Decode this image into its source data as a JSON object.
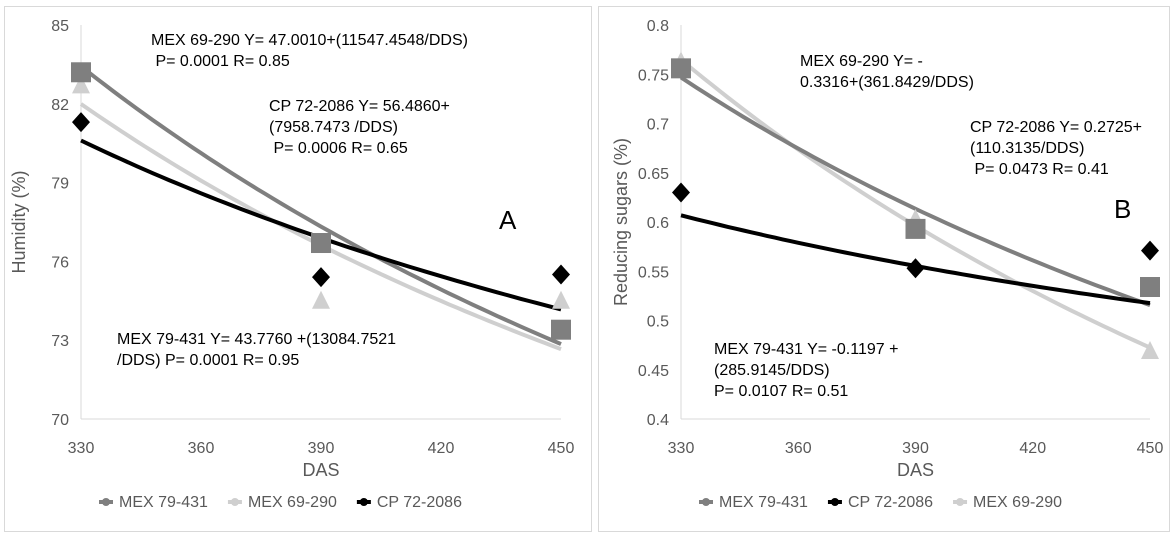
{
  "chart_data": [
    {
      "type": "scatter",
      "panel_letter": "A",
      "xlabel": "DAS",
      "ylabel": "Humidity (%)",
      "xlim": [
        330,
        450
      ],
      "ylim": [
        70,
        85
      ],
      "xticks": [
        "330",
        "360",
        "390",
        "420",
        "450"
      ],
      "yticks": [
        "70",
        "73",
        "76",
        "79",
        "82",
        "85"
      ],
      "grid": false,
      "legend_position": "bottom",
      "series": [
        {
          "name": "MEX 79-431",
          "color": "#7f7f7f",
          "marker": "square",
          "x": [
            330,
            390,
            450
          ],
          "y": [
            83.2,
            76.7,
            73.4
          ],
          "fit": {
            "a": 43.776,
            "b": 13084.7521
          }
        },
        {
          "name": "MEX 69-290",
          "color": "#cfcfcf",
          "marker": "triangle",
          "x": [
            330,
            390,
            450
          ],
          "y": [
            82.7,
            74.5,
            74.5
          ],
          "fit": {
            "a": 47.001,
            "b": 11547.4548
          }
        },
        {
          "name": "CP 72-2086",
          "color": "#000000",
          "marker": "diamond",
          "x": [
            330,
            390,
            450
          ],
          "y": [
            81.3,
            75.4,
            75.5
          ],
          "fit": {
            "a": 56.486,
            "b": 7958.7473
          }
        }
      ],
      "annotations": [
        {
          "lines": [
            "MEX 69-290 Y= 47.0010+(11547.4548/DDS)",
            " P= 0.0001 R= 0.85"
          ]
        },
        {
          "lines": [
            "CP 72-2086 Y= 56.4860+",
            "(7958.7473 /DDS)",
            " P= 0.0006 R= 0.65"
          ]
        },
        {
          "lines": [
            "MEX 79-431 Y= 43.7760 +(13084.7521",
            "/DDS) P= 0.0001 R= 0.95"
          ]
        }
      ]
    },
    {
      "type": "scatter",
      "panel_letter": "B",
      "xlabel": "DAS",
      "ylabel": "Reducing sugars (%)",
      "xlim": [
        330,
        450
      ],
      "ylim": [
        0.4,
        0.8
      ],
      "xticks": [
        "330",
        "360",
        "390",
        "420",
        "450"
      ],
      "yticks": [
        "0.4",
        "0.45",
        "0.5",
        "0.55",
        "0.6",
        "0.65",
        "0.7",
        "0.75",
        "0.8"
      ],
      "grid": false,
      "legend_position": "bottom",
      "series": [
        {
          "name": "MEX 79-431",
          "color": "#7f7f7f",
          "marker": "square",
          "x": [
            330,
            390,
            450
          ],
          "y": [
            0.756,
            0.593,
            0.534
          ],
          "fit": {
            "a": -0.1197,
            "b": 285.9145
          }
        },
        {
          "name": "CP 72-2086",
          "color": "#000000",
          "marker": "diamond",
          "x": [
            330,
            390,
            450
          ],
          "y": [
            0.63,
            0.553,
            0.571
          ],
          "fit": {
            "a": 0.2725,
            "b": 110.3135
          }
        },
        {
          "name": "MEX 69-290",
          "color": "#cfcfcf",
          "marker": "triangle",
          "x": [
            330,
            390,
            450
          ],
          "y": [
            0.763,
            0.603,
            0.469
          ],
          "fit": {
            "a": -0.3316,
            "b": 361.8429
          }
        }
      ],
      "annotations": [
        {
          "lines": [
            "MEX 69-290 Y= -",
            "0.3316+(361.8429/DDS)"
          ]
        },
        {
          "lines": [
            "CP 72-2086 Y= 0.2725+",
            "(110.3135/DDS)",
            " P= 0.0473 R= 0.41"
          ]
        },
        {
          "lines": [
            "MEX 79-431 Y= -0.1197 +",
            "(285.9145/DDS)",
            "P= 0.0107 R= 0.51"
          ]
        }
      ]
    }
  ]
}
